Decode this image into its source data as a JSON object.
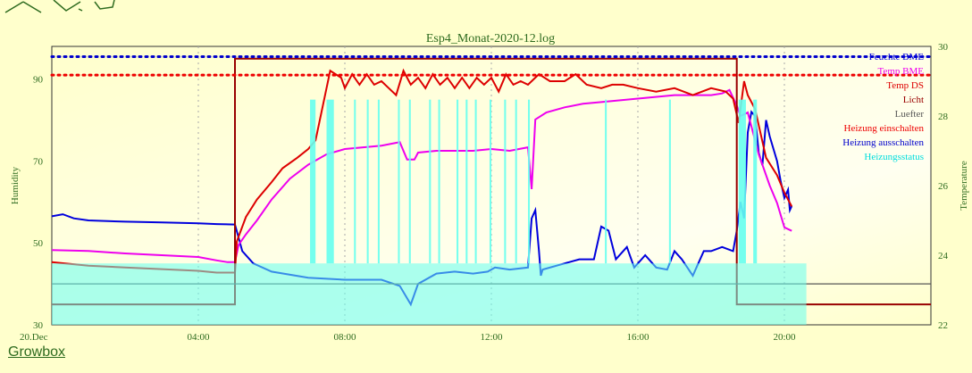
{
  "footer": {
    "link_label": "Growbox"
  },
  "chart_data": {
    "type": "line",
    "title": "Esp4_Monat-2020-12.log",
    "ylabel": "Humidity",
    "y2label": "Temperature",
    "ylim": [
      30,
      98
    ],
    "y2lim": [
      22,
      30
    ],
    "yticks": [
      30,
      50,
      70,
      90
    ],
    "y2ticks": [
      22,
      24,
      26,
      28,
      30
    ],
    "x_start_label": "20.Dec",
    "xlim": [
      0,
      24
    ],
    "xticks": [
      {
        "h": 4,
        "label": "04:00"
      },
      {
        "h": 8,
        "label": "08:00"
      },
      {
        "h": 12,
        "label": "12:00"
      },
      {
        "h": 16,
        "label": "16:00"
      },
      {
        "h": 20,
        "label": "20:00"
      }
    ],
    "grid": true,
    "legend_position": "top-right",
    "colors": {
      "axis_text": "#2e6b1f",
      "frame": "#333333",
      "grid": "#aaaaaa",
      "feuchte": "#0000dd",
      "temp_bme": "#ee00ee",
      "temp_ds": "#dd0000",
      "licht": "#990000",
      "luefter": "#555555",
      "heizung_ein": "#ee0000",
      "heizung_aus": "#0000cc",
      "heizstatus": "#66ffee",
      "fill_rest": "#eeffbb"
    },
    "legend": [
      {
        "label": "Feuchte BME",
        "color": "#0000dd"
      },
      {
        "label": "Temp BME",
        "color": "#ee00ee"
      },
      {
        "label": "Temp DS",
        "color": "#dd0000"
      },
      {
        "label": "Licht",
        "color": "#990000"
      },
      {
        "label": "Luefter",
        "color": "#555555"
      },
      {
        "label": "Heizung einschalten",
        "color": "#ee0000"
      },
      {
        "label": "Heizung ausschalten",
        "color": "#0000cc"
      },
      {
        "label": "Heizungsstatus",
        "color": "#00dddd"
      }
    ],
    "series": [
      {
        "name": "Feuchte BME",
        "axis": "left",
        "style": "solid",
        "x": [
          0,
          0.3,
          0.6,
          1,
          2,
          3,
          4,
          4.5,
          5,
          5.2,
          5.5,
          6,
          7,
          8,
          9,
          9.5,
          9.8,
          10,
          10.5,
          11,
          11.5,
          11.9,
          12.1,
          12.5,
          13,
          13.1,
          13.2,
          13.3,
          13.35,
          13.4,
          14,
          14.4,
          14.8,
          15,
          15.2,
          15.4,
          15.7,
          15.9,
          16.2,
          16.5,
          16.8,
          17,
          17.2,
          17.5,
          17.8,
          18,
          18.3,
          18.6,
          18.7,
          18.8,
          18.9,
          19,
          19.1,
          19.2,
          19.3,
          19.4,
          19.5,
          19.6,
          19.8,
          19.9,
          20,
          20.1,
          20.15,
          20.2
        ],
        "y": [
          56.5,
          57,
          56,
          55.5,
          55.2,
          55,
          54.8,
          54.6,
          54.5,
          48,
          45,
          43,
          41.5,
          41,
          41,
          39.5,
          35,
          40,
          42.5,
          43,
          42.5,
          43,
          44,
          43.5,
          44,
          56,
          58,
          48,
          42,
          43.5,
          45,
          46,
          46,
          54,
          53,
          46,
          49,
          44,
          47,
          44,
          43.5,
          48,
          46,
          42,
          48,
          48,
          49,
          48,
          53,
          60,
          56,
          77,
          82,
          81,
          72,
          69,
          80,
          76,
          70,
          65,
          61,
          63,
          58,
          59
        ]
      },
      {
        "name": "Temp BME",
        "axis": "right",
        "style": "solid",
        "x": [
          0,
          1,
          2,
          3,
          4,
          4.5,
          4.8,
          5,
          5.1,
          5.3,
          5.6,
          6,
          6.5,
          7,
          7.5,
          8,
          8.5,
          9,
          9.5,
          9.7,
          9.9,
          10,
          10.5,
          11,
          11.5,
          12,
          12.5,
          13,
          13.1,
          13.2,
          13.5,
          14,
          14.5,
          15,
          16,
          17,
          17.5,
          18,
          18.3,
          18.5,
          18.7,
          18.8,
          19,
          19.3,
          19.6,
          19.8,
          20,
          20.2
        ],
        "y": [
          24.15,
          24.12,
          24.05,
          24,
          23.95,
          23.85,
          23.8,
          23.8,
          24.3,
          24.6,
          25.0,
          25.6,
          26.2,
          26.6,
          26.9,
          27.05,
          27.1,
          27.15,
          27.25,
          26.75,
          26.75,
          26.95,
          27.0,
          27.0,
          27.0,
          27.05,
          27.0,
          27.1,
          25.9,
          27.9,
          28.1,
          28.25,
          28.35,
          28.4,
          28.5,
          28.6,
          28.6,
          28.6,
          28.65,
          28.75,
          28.3,
          28.0,
          28.1,
          26.9,
          26.0,
          25.5,
          24.8,
          24.7
        ]
      },
      {
        "name": "Temp DS",
        "axis": "right",
        "style": "solid",
        "x": [
          0,
          0.5,
          1,
          2,
          3,
          4,
          4.5,
          5,
          5.05,
          5.3,
          5.6,
          6,
          6.3,
          6.7,
          7,
          7.2,
          7.4,
          7.6,
          7.9,
          8,
          8.2,
          8.4,
          8.6,
          8.8,
          9,
          9.2,
          9.4,
          9.6,
          9.8,
          10,
          10.2,
          10.4,
          10.6,
          10.8,
          11,
          11.2,
          11.4,
          11.6,
          11.8,
          12,
          12.2,
          12.4,
          12.6,
          12.8,
          13,
          13.3,
          13.6,
          14,
          14.3,
          14.6,
          15,
          15.3,
          15.6,
          16,
          16.5,
          17,
          17.5,
          18,
          18.4,
          18.6,
          18.75,
          18.9,
          19,
          19.2,
          19.5,
          19.8,
          20,
          20.2
        ],
        "y": [
          23.8,
          23.75,
          23.7,
          23.65,
          23.6,
          23.55,
          23.5,
          23.5,
          24.4,
          25.1,
          25.6,
          26.1,
          26.5,
          26.8,
          27.05,
          27.3,
          28.3,
          29.3,
          29.1,
          28.8,
          29.2,
          28.9,
          29.2,
          28.9,
          29.0,
          28.8,
          28.6,
          29.3,
          28.9,
          29.1,
          28.8,
          29.2,
          28.9,
          29.1,
          28.8,
          29.1,
          28.8,
          29.1,
          28.9,
          29.1,
          28.7,
          29.2,
          28.9,
          29.0,
          28.9,
          29.2,
          29.0,
          29.0,
          29.2,
          28.9,
          28.8,
          28.9,
          28.9,
          28.8,
          28.7,
          28.8,
          28.6,
          28.8,
          28.7,
          28.5,
          27.8,
          29.0,
          28.6,
          28.2,
          26.8,
          26.3,
          25.8,
          25.4
        ]
      },
      {
        "name": "Licht",
        "axis": "left",
        "style": "step",
        "x": [
          0,
          5,
          5,
          18.7,
          18.7,
          24
        ],
        "y": [
          35,
          35,
          95,
          95,
          35,
          35
        ]
      },
      {
        "name": "Luefter",
        "axis": "left",
        "style": "solid",
        "x": [
          0,
          24
        ],
        "y": [
          40,
          40
        ]
      },
      {
        "name": "Heizung einschalten",
        "axis": "left",
        "style": "dotted",
        "x": [
          0,
          24
        ],
        "y": [
          91,
          91
        ]
      },
      {
        "name": "Heizung ausschalten",
        "axis": "left",
        "style": "dotted",
        "x": [
          0,
          24
        ],
        "y": [
          95.5,
          95.5
        ]
      },
      {
        "name": "Heizungsstatus",
        "axis": "left",
        "style": "fill",
        "base": 45,
        "spikes": [
          [
            7.05,
            7.2
          ],
          [
            7.5,
            7.7
          ],
          [
            8.25,
            8.3
          ],
          [
            8.6,
            8.65
          ],
          [
            8.9,
            8.95
          ],
          [
            9.45,
            9.5
          ],
          [
            9.75,
            9.8
          ],
          [
            10.3,
            10.35
          ],
          [
            10.55,
            10.6
          ],
          [
            11.05,
            11.1
          ],
          [
            11.3,
            11.35
          ],
          [
            11.55,
            11.6
          ],
          [
            11.95,
            12.0
          ],
          [
            12.35,
            12.4
          ],
          [
            12.65,
            12.7
          ],
          [
            13.0,
            13.05
          ],
          [
            15.1,
            15.15
          ],
          [
            16.85,
            16.9
          ],
          [
            18.75,
            18.95
          ],
          [
            19.15,
            19.25
          ]
        ],
        "spike_top": 85
      }
    ]
  }
}
